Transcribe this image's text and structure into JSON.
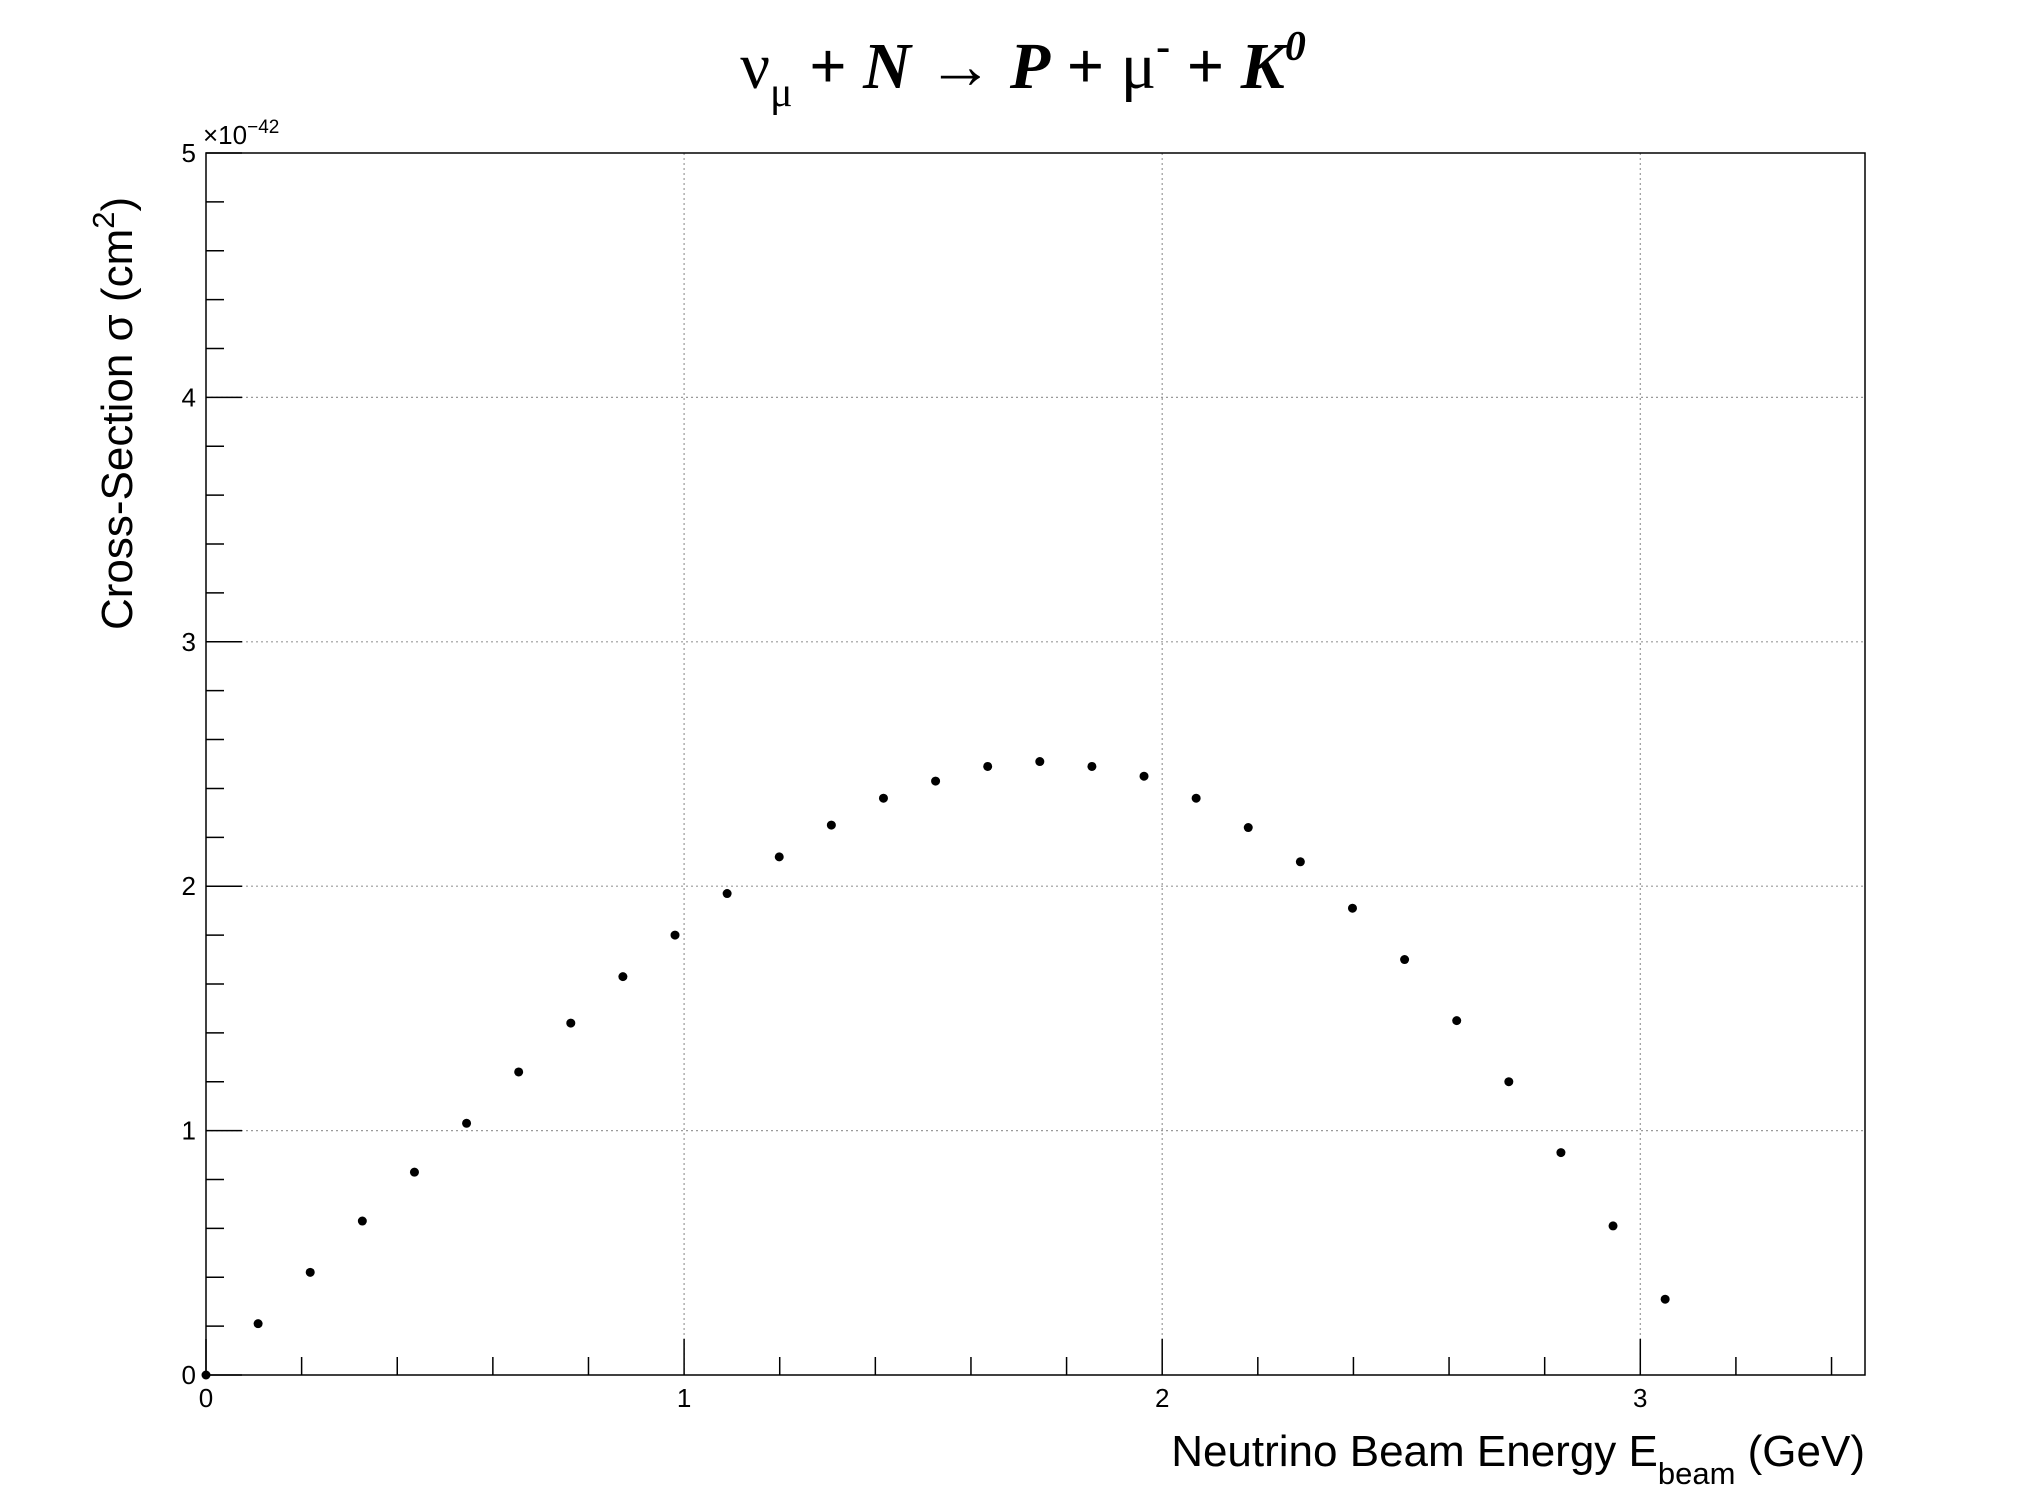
{
  "chart_data": {
    "type": "scatter",
    "title": {
      "nu": "ν",
      "mu_sub": "μ",
      "plus1": " + ",
      "N": "N",
      "arrow": "  → ",
      "P": "P",
      "plus2": " +  ",
      "mu": "μ",
      "minus_sup": "-",
      "plus3": " + ",
      "K": "K",
      "zero_sup": "0"
    },
    "xlabel": {
      "main": "Neutrino Beam Energy E",
      "sub": "beam",
      "unit": " (GeV)"
    },
    "ylabel": {
      "main": "Cross-Section σ (cm",
      "sup": "2",
      "close": ")"
    },
    "y_exponent": "×10",
    "y_exponent_power": "−42",
    "xlim": [
      0,
      3.47
    ],
    "ylim": [
      0,
      5
    ],
    "x_ticks": [
      0,
      1,
      2,
      3
    ],
    "x_tick_labels": [
      "0",
      "1",
      "2",
      "3"
    ],
    "y_ticks": [
      0,
      1,
      2,
      3,
      4,
      5
    ],
    "y_tick_labels": [
      "0",
      "1",
      "2",
      "3",
      "4",
      "5"
    ],
    "grid": true,
    "marker_color": "#000000",
    "x": [
      0.0,
      0.109,
      0.218,
      0.327,
      0.436,
      0.545,
      0.654,
      0.763,
      0.872,
      0.981,
      1.09,
      1.199,
      1.308,
      1.417,
      1.526,
      1.635,
      1.744,
      1.853,
      1.962,
      2.071,
      2.18,
      2.289,
      2.398,
      2.507,
      2.616,
      2.725,
      2.834,
      2.943,
      3.052
    ],
    "y": [
      0.0,
      0.21,
      0.42,
      0.63,
      0.83,
      1.03,
      1.24,
      1.44,
      1.63,
      1.8,
      1.97,
      2.12,
      2.25,
      2.36,
      2.43,
      2.49,
      2.51,
      2.49,
      2.45,
      2.36,
      2.24,
      2.1,
      1.91,
      1.7,
      1.45,
      1.2,
      0.91,
      0.61,
      0.31
    ]
  }
}
